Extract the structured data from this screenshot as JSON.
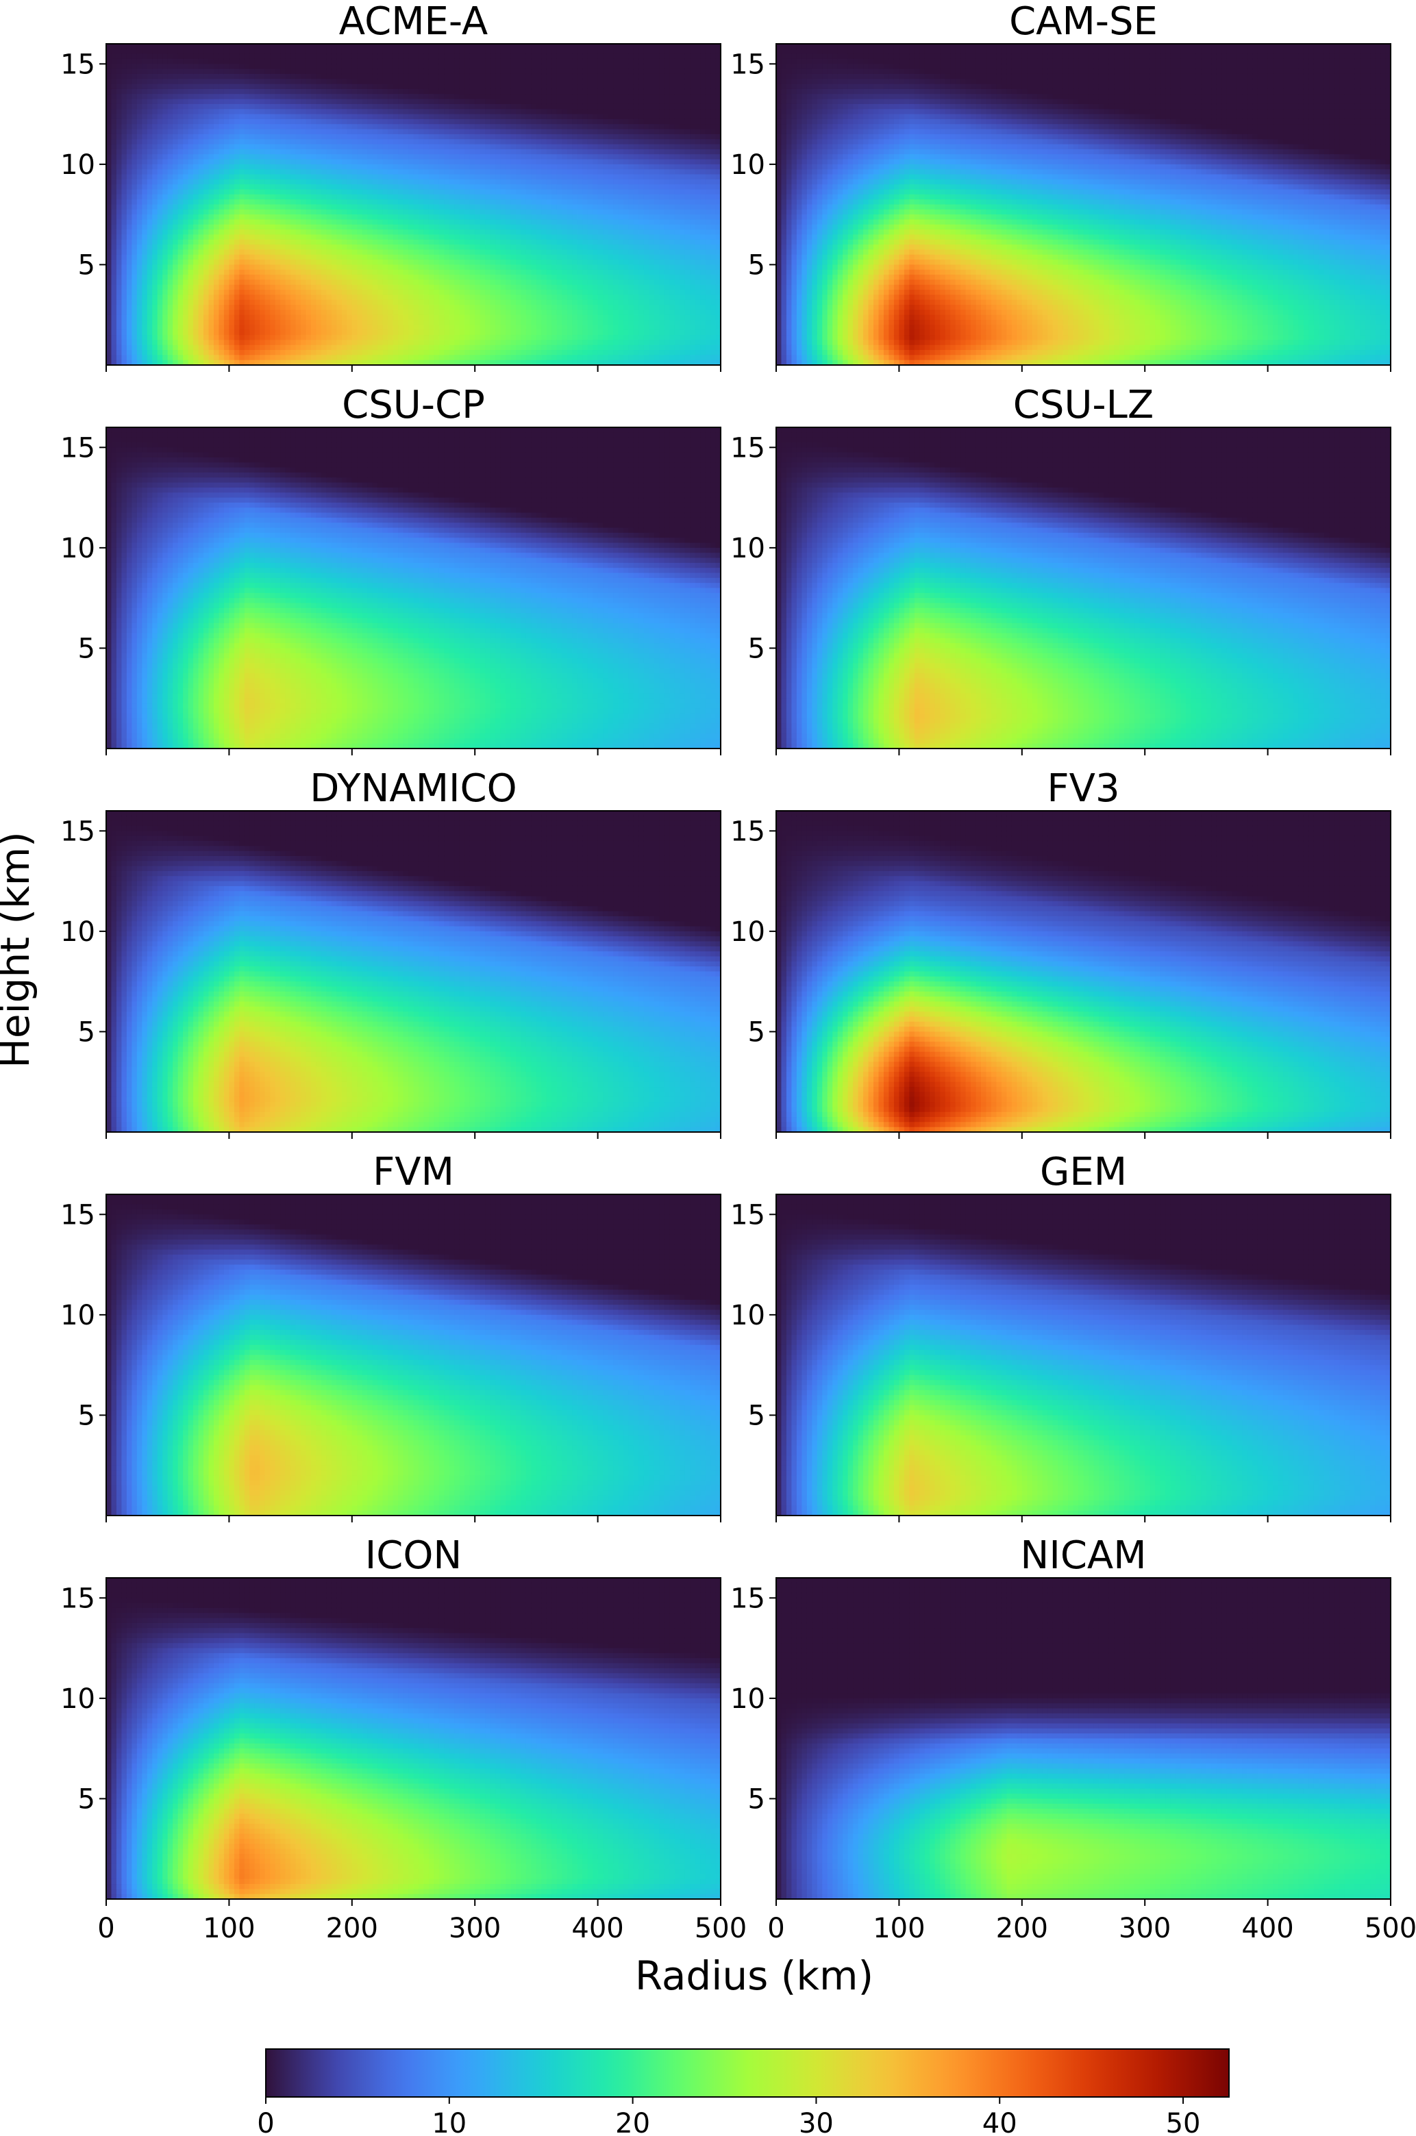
{
  "chart_data": {
    "type": "heatmap",
    "xlabel": "Radius (km)",
    "ylabel": "Height (km)",
    "xlim": [
      0,
      500
    ],
    "ylim": [
      0,
      16
    ],
    "xticks": [
      0,
      100,
      200,
      300,
      400,
      500
    ],
    "yticks": [
      5,
      10,
      15
    ],
    "colorbar": {
      "ticks": [
        0,
        10,
        20,
        30,
        40,
        50
      ],
      "range": [
        0,
        52.5
      ],
      "colormap": "turbo"
    },
    "panels": [
      {
        "title": "ACME-A",
        "vmax": 44.5,
        "rmax": 110,
        "zmax": 1.5,
        "topInner": 15.3,
        "topOuter": 11.0,
        "sx": 150,
        "sz": 8.0,
        "outer": 10,
        "surf": 0.8
      },
      {
        "title": "CAM-SE",
        "vmax": 48.5,
        "rmax": 110,
        "zmax": 1.3,
        "topInner": 15.5,
        "topOuter": 9.5,
        "sx": 145,
        "sz": 7.5,
        "outer": 10,
        "surf": 0.8
      },
      {
        "title": "CSU-CP",
        "vmax": 32.0,
        "rmax": 115,
        "zmax": 2.0,
        "topInner": 15.0,
        "topOuter": 9.5,
        "sx": 170,
        "sz": 8.5,
        "outer": 8,
        "surf": 0.9
      },
      {
        "title": "CSU-LZ",
        "vmax": 34.0,
        "rmax": 115,
        "zmax": 1.5,
        "topInner": 15.0,
        "topOuter": 9.5,
        "sx": 165,
        "sz": 8.5,
        "outer": 8,
        "surf": 0.9
      },
      {
        "title": "DYNAMICO",
        "vmax": 36.5,
        "rmax": 110,
        "zmax": 1.5,
        "topInner": 15.0,
        "topOuter": 9.5,
        "sx": 165,
        "sz": 8.5,
        "outer": 8,
        "surf": 0.9
      },
      {
        "title": "FV3",
        "vmax": 50.5,
        "rmax": 110,
        "zmax": 1.2,
        "topInner": 15.5,
        "topOuter": 10.0,
        "sx": 125,
        "sz": 7.0,
        "outer": 9,
        "surf": 0.8
      },
      {
        "title": "FVM",
        "vmax": 34.5,
        "rmax": 120,
        "zmax": 2.0,
        "topInner": 15.3,
        "topOuter": 10.0,
        "sx": 170,
        "sz": 8.5,
        "outer": 7,
        "surf": 0.9
      },
      {
        "title": "GEM",
        "vmax": 33.0,
        "rmax": 110,
        "zmax": 1.0,
        "topInner": 14.8,
        "topOuter": 10.5,
        "sx": 165,
        "sz": 8.5,
        "outer": 7,
        "surf": 0.9
      },
      {
        "title": "ICON",
        "vmax": 39.5,
        "rmax": 110,
        "zmax": 1.0,
        "topInner": 14.5,
        "topOuter": 11.5,
        "sx": 160,
        "sz": 8.5,
        "outer": 10,
        "surf": 0.85
      },
      {
        "title": "NICAM",
        "vmax": 27.0,
        "rmax": 190,
        "zmax": 2.0,
        "topInner": 9.5,
        "topOuter": 9.8,
        "sx": 280,
        "sz": 5.5,
        "outer": 18,
        "surf": 0.9
      }
    ]
  }
}
